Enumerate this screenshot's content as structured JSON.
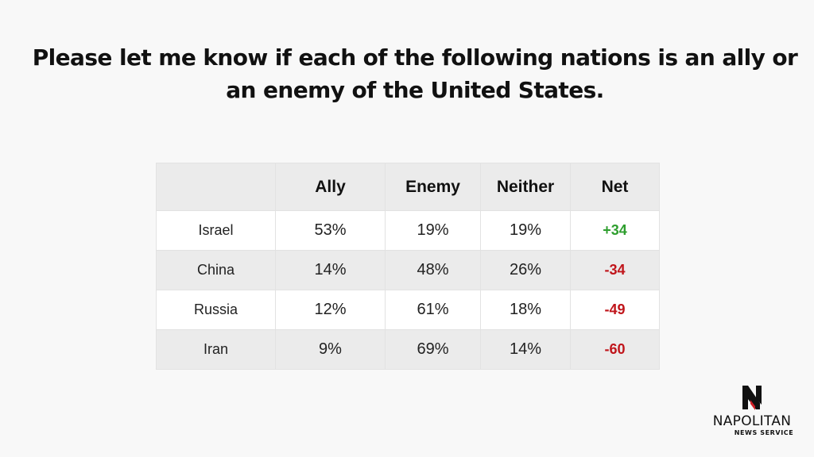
{
  "title": "Please let me know if each of the following nations is an ally or an enemy of the United States.",
  "chart_data": {
    "type": "table",
    "columns": [
      "",
      "Ally",
      "Enemy",
      "Neither",
      "Net"
    ],
    "rows": [
      {
        "country": "Israel",
        "ally": "53%",
        "enemy": "19%",
        "neither": "19%",
        "net": "+34"
      },
      {
        "country": "China",
        "ally": "14%",
        "enemy": "48%",
        "neither": "26%",
        "net": "-34"
      },
      {
        "country": "Russia",
        "ally": "12%",
        "enemy": "61%",
        "neither": "18%",
        "net": "-49"
      },
      {
        "country": "Iran",
        "ally": "9%",
        "enemy": "69%",
        "neither": "14%",
        "net": "-60"
      }
    ]
  },
  "colors": {
    "positive": "#2e9e2e",
    "negative": "#c0151b",
    "logo_accent": "#d12027"
  },
  "logo": {
    "name": "NAPOLITAN",
    "subtitle": "NEWS SERVICE"
  }
}
